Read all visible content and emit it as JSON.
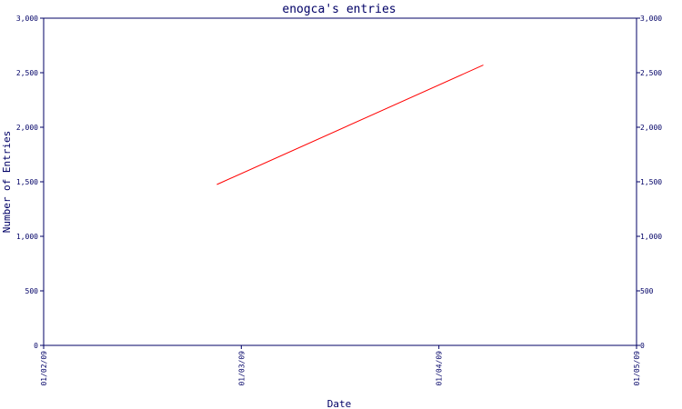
{
  "chart_data": {
    "type": "line",
    "title": "enogca's entries",
    "xlabel": "Date",
    "ylabel": "Number of Entries",
    "x_ticks": [
      "01/02/09",
      "01/03/09",
      "01/04/09",
      "01/05/09"
    ],
    "x_range": [
      "2009-02-01",
      "2009-05-01"
    ],
    "ylim": [
      0,
      3000
    ],
    "y_ticks": [
      0,
      500,
      1000,
      1500,
      2000,
      2500,
      3000
    ],
    "y_tick_labels": [
      "0",
      "500",
      "1,000",
      "1,500",
      "2,000",
      "2,500",
      "3,000"
    ],
    "grid": false,
    "series": [
      {
        "name": "",
        "color": "#ff0000",
        "points": [
          {
            "x": "2009-02-27",
            "y": 1475
          },
          {
            "x": "2009-04-08",
            "y": 2570
          }
        ]
      }
    ]
  },
  "colors": {
    "axis": "#000066",
    "line": "#ff0000"
  }
}
